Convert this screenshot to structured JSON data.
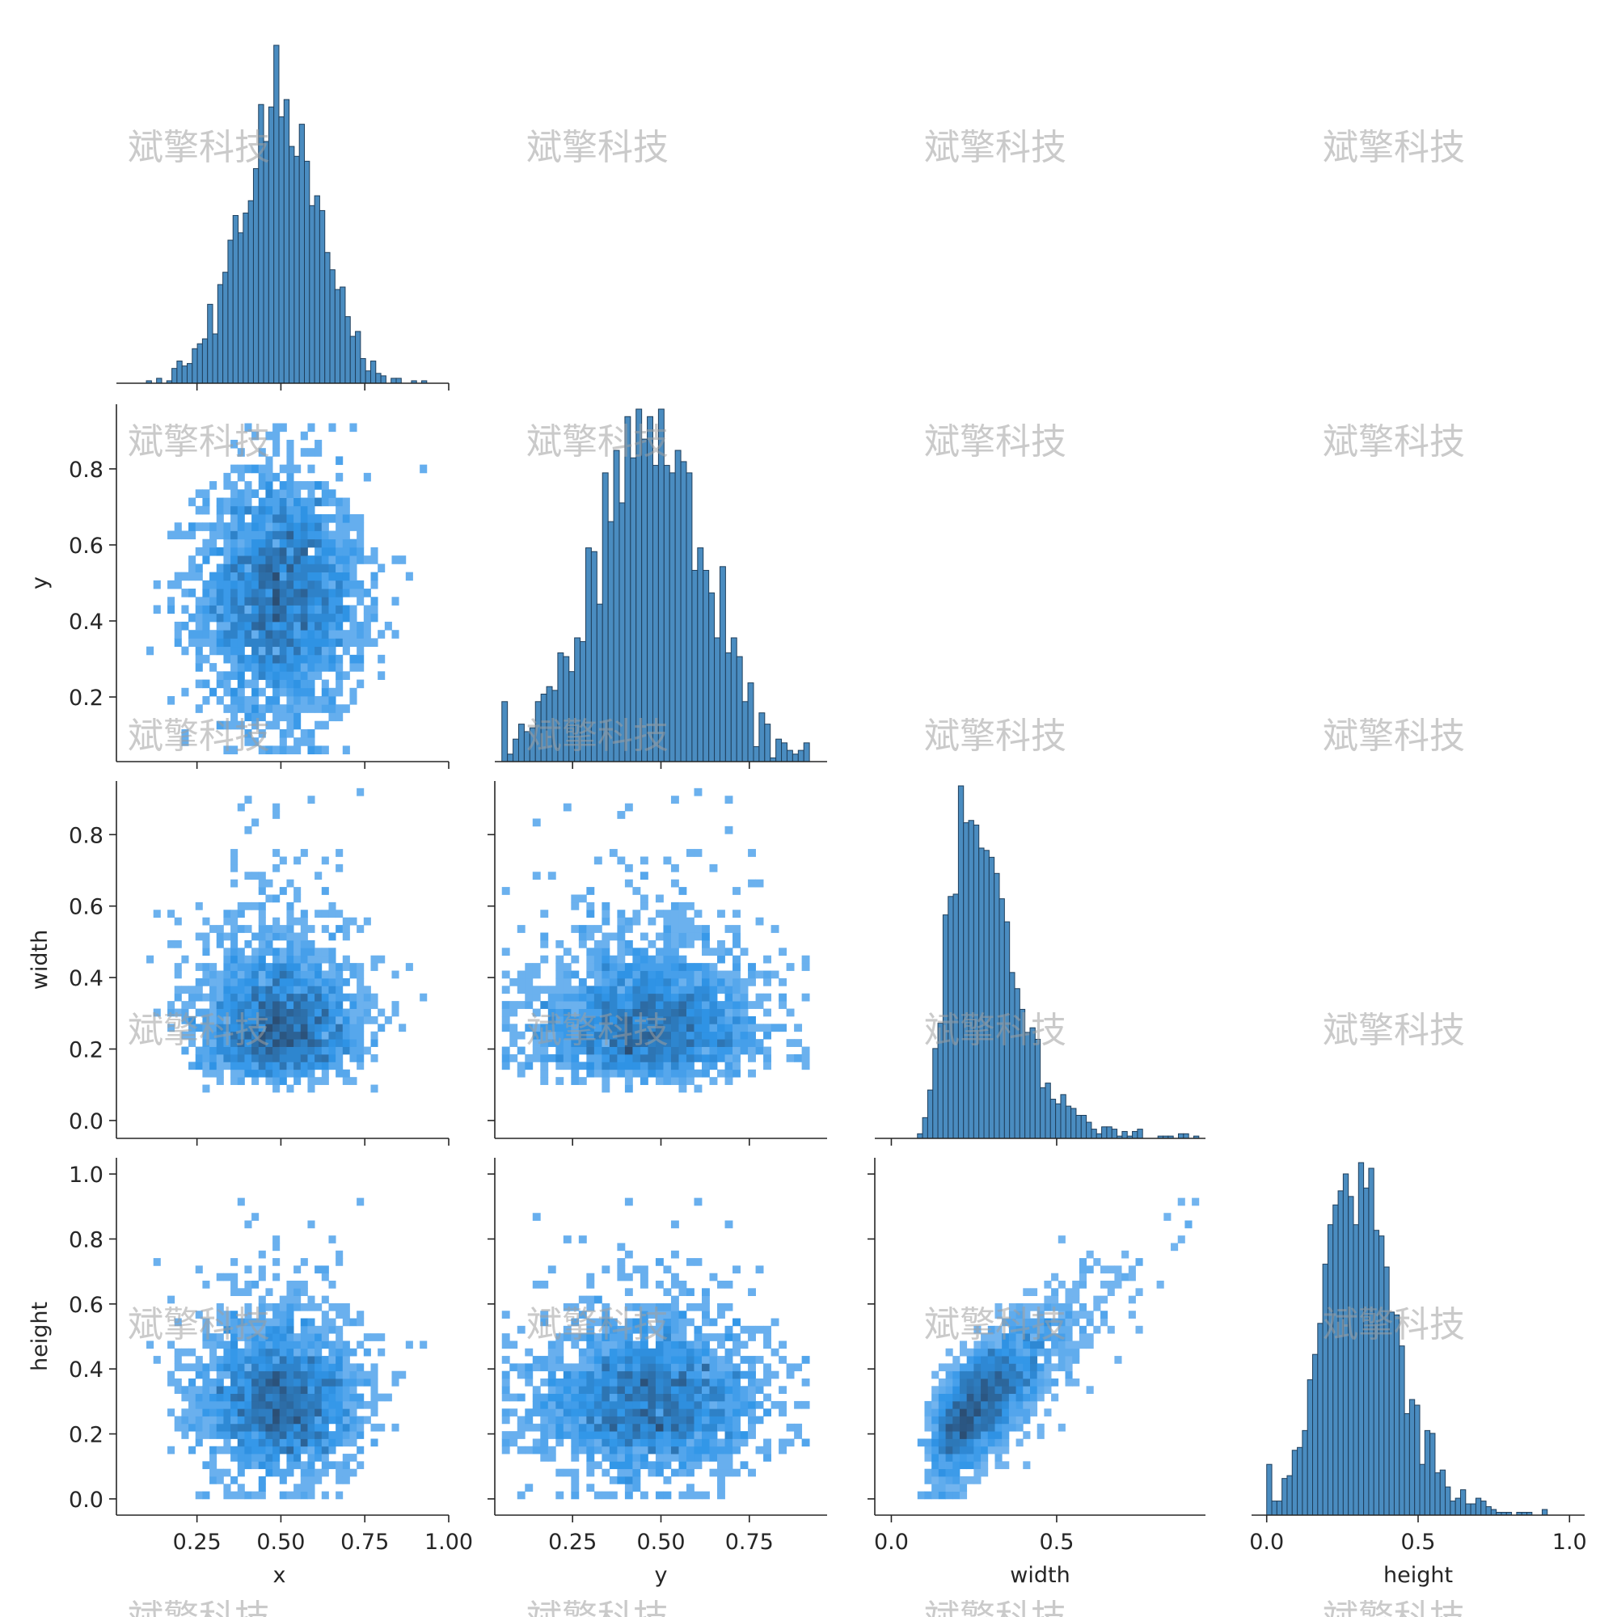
{
  "watermark": "斌擎科技",
  "colors": {
    "hist_fill": "#4a8cc0",
    "hist_edge": "#1f3f5c",
    "heat_low": "#9ec8f4",
    "heat_mid": "#2f95e8",
    "heat_high": "#2b4e74",
    "axis": "#262626"
  },
  "chart_data": {
    "type": "pairplot",
    "layout": "corner",
    "variables": [
      "x",
      "y",
      "width",
      "height"
    ],
    "diag_kind": "histogram",
    "offdiag_kind": "2d-histogram",
    "axes": {
      "x": {
        "label": "x",
        "range": [
          0.01,
          1.0
        ],
        "ticks": [
          "0.25",
          "0.50",
          "0.75",
          "1.00"
        ],
        "tick_values": [
          0.25,
          0.5,
          0.75,
          1.0
        ]
      },
      "y": {
        "label": "y",
        "range": [
          0.03,
          0.97
        ],
        "ticks": [
          "0.25",
          "0.50",
          "0.75"
        ],
        "tick_values": [
          0.25,
          0.5,
          0.75
        ],
        "ticks_left": [
          "0.2",
          "0.4",
          "0.6",
          "0.8"
        ],
        "tick_values_left": [
          0.2,
          0.4,
          0.6,
          0.8
        ]
      },
      "width": {
        "label": "width",
        "range": [
          -0.05,
          0.95
        ],
        "ticks": [
          "0.0",
          "0.5"
        ],
        "tick_values": [
          0.0,
          0.5
        ],
        "ticks_left": [
          "0.0",
          "0.2",
          "0.4",
          "0.6",
          "0.8"
        ],
        "tick_values_left": [
          0.0,
          0.2,
          0.4,
          0.6,
          0.8
        ]
      },
      "height": {
        "label": "height",
        "range": [
          -0.05,
          1.05
        ],
        "ticks": [
          "0.0",
          "0.5",
          "1.0"
        ],
        "tick_values": [
          0.0,
          0.5,
          1.0
        ],
        "ticks_left": [
          "0.0",
          "0.2",
          "0.4",
          "0.6",
          "0.8",
          "1.0"
        ],
        "tick_values_left": [
          0.0,
          0.2,
          0.4,
          0.6,
          0.8,
          1.0
        ]
      }
    },
    "diagonal_histograms": [
      {
        "variable": "x",
        "bins": 55,
        "shape": "normal",
        "center": 0.5,
        "spread": 0.12,
        "peak_at": 0.5
      },
      {
        "variable": "y",
        "bins": 55,
        "shape": "normal",
        "center": 0.47,
        "spread": 0.15,
        "peak_at": 0.48
      },
      {
        "variable": "width",
        "bins": 55,
        "shape": "right-skewed",
        "center": 0.27,
        "spread": 0.12,
        "peak_at": 0.23
      },
      {
        "variable": "height",
        "bins": 55,
        "shape": "right-skewed",
        "center": 0.3,
        "spread": 0.12,
        "peak_at": 0.28
      }
    ],
    "joint_histograms": [
      {
        "x": "x",
        "y": "y",
        "center": [
          0.5,
          0.45
        ],
        "correlation": 0.0
      },
      {
        "x": "x",
        "y": "width",
        "center": [
          0.5,
          0.27
        ],
        "correlation": 0.0
      },
      {
        "x": "y",
        "y": "width",
        "center": [
          0.47,
          0.25
        ],
        "correlation": 0.0
      },
      {
        "x": "x",
        "y": "height",
        "center": [
          0.5,
          0.3
        ],
        "correlation": 0.0
      },
      {
        "x": "y",
        "y": "height",
        "center": [
          0.47,
          0.3
        ],
        "correlation": 0.0
      },
      {
        "x": "width",
        "y": "height",
        "center": [
          0.25,
          0.25
        ],
        "correlation": 0.7
      }
    ]
  }
}
